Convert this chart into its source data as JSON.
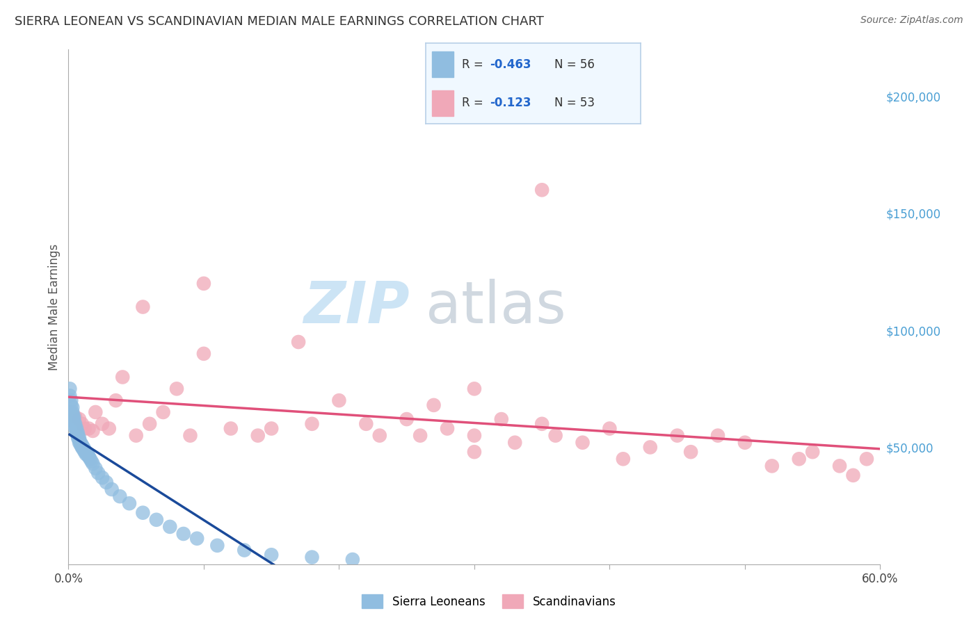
{
  "title": "SIERRA LEONEAN VS SCANDINAVIAN MEDIAN MALE EARNINGS CORRELATION CHART",
  "source": "Source: ZipAtlas.com",
  "ylabel": "Median Male Earnings",
  "xlim": [
    0.0,
    0.6
  ],
  "ylim": [
    0,
    220000
  ],
  "xticks": [
    0.0,
    0.1,
    0.2,
    0.3,
    0.4,
    0.5,
    0.6
  ],
  "xtick_labels_edges": [
    "0.0%",
    "",
    "",
    "",
    "",
    "",
    "60.0%"
  ],
  "ytick_right": [
    50000,
    100000,
    150000,
    200000
  ],
  "ytick_right_labels": [
    "$50,000",
    "$100,000",
    "$150,000",
    "$200,000"
  ],
  "background_color": "#ffffff",
  "grid_color": "#c8d8e8",
  "sierra_color": "#90bde0",
  "scand_color": "#f0a8b8",
  "sierra_line_color": "#1a4a9a",
  "scand_line_color": "#e0507a",
  "dashed_line_color": "#90bde0",
  "legend_box_color": "#e8f4ff",
  "legend_border_color": "#c0d8ee",
  "watermark_zip_color": "#cce4f5",
  "watermark_atlas_color": "#d0d8e0",
  "sierra_x": [
    0.001,
    0.001,
    0.002,
    0.002,
    0.003,
    0.003,
    0.003,
    0.004,
    0.004,
    0.004,
    0.005,
    0.005,
    0.005,
    0.006,
    0.006,
    0.006,
    0.007,
    0.007,
    0.007,
    0.008,
    0.008,
    0.008,
    0.009,
    0.009,
    0.01,
    0.01,
    0.01,
    0.011,
    0.011,
    0.012,
    0.012,
    0.013,
    0.013,
    0.014,
    0.015,
    0.015,
    0.016,
    0.017,
    0.018,
    0.02,
    0.022,
    0.025,
    0.028,
    0.032,
    0.038,
    0.045,
    0.055,
    0.065,
    0.075,
    0.085,
    0.095,
    0.11,
    0.13,
    0.15,
    0.18,
    0.21
  ],
  "sierra_y": [
    75000,
    72000,
    70000,
    68000,
    67000,
    65000,
    64000,
    63000,
    62000,
    61000,
    60000,
    59000,
    58000,
    58000,
    57000,
    56000,
    56000,
    55000,
    54000,
    54000,
    53000,
    52000,
    52000,
    51000,
    51000,
    50000,
    50000,
    50000,
    49000,
    49000,
    48000,
    48000,
    47000,
    47000,
    46000,
    46000,
    45000,
    44000,
    43000,
    41000,
    39000,
    37000,
    35000,
    32000,
    29000,
    26000,
    22000,
    19000,
    16000,
    13000,
    11000,
    8000,
    6000,
    4000,
    3000,
    2000
  ],
  "scand_x": [
    0.005,
    0.008,
    0.01,
    0.012,
    0.015,
    0.018,
    0.02,
    0.025,
    0.03,
    0.035,
    0.04,
    0.05,
    0.06,
    0.07,
    0.08,
    0.09,
    0.1,
    0.12,
    0.14,
    0.15,
    0.17,
    0.18,
    0.2,
    0.22,
    0.23,
    0.25,
    0.26,
    0.27,
    0.28,
    0.3,
    0.3,
    0.32,
    0.33,
    0.35,
    0.36,
    0.38,
    0.4,
    0.41,
    0.43,
    0.45,
    0.46,
    0.48,
    0.5,
    0.52,
    0.54,
    0.55,
    0.57,
    0.58,
    0.59,
    0.35,
    0.1,
    0.055,
    0.3
  ],
  "scand_y": [
    63000,
    62000,
    60000,
    58000,
    58000,
    57000,
    65000,
    60000,
    58000,
    70000,
    80000,
    55000,
    60000,
    65000,
    75000,
    55000,
    90000,
    58000,
    55000,
    58000,
    95000,
    60000,
    70000,
    60000,
    55000,
    62000,
    55000,
    68000,
    58000,
    55000,
    48000,
    62000,
    52000,
    60000,
    55000,
    52000,
    58000,
    45000,
    50000,
    55000,
    48000,
    55000,
    52000,
    42000,
    45000,
    48000,
    42000,
    38000,
    45000,
    160000,
    120000,
    110000,
    75000
  ]
}
